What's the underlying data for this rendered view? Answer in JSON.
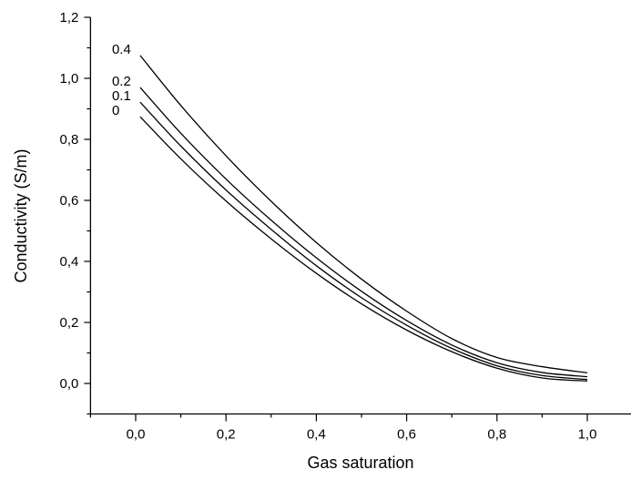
{
  "chart_data": {
    "type": "line",
    "title": "",
    "xlabel": "Gas saturation",
    "ylabel": "Conductivity (S/m)",
    "xlim": [
      -0.1,
      1.1
    ],
    "ylim": [
      -0.1,
      1.2
    ],
    "x_ticks": [
      0.0,
      0.2,
      0.4,
      0.6,
      0.8,
      1.0
    ],
    "x_tick_labels": [
      "0,0",
      "0,2",
      "0,4",
      "0,6",
      "0,8",
      "1,0"
    ],
    "y_ticks": [
      0.0,
      0.2,
      0.4,
      0.6,
      0.8,
      1.0,
      1.2
    ],
    "y_tick_labels": [
      "0,0",
      "0,2",
      "0,4",
      "0,6",
      "0,8",
      "1,0",
      "1,2"
    ],
    "grid": false,
    "legend": "none",
    "x": [
      0.01,
      0.1,
      0.2,
      0.3,
      0.4,
      0.5,
      0.6,
      0.7,
      0.8,
      0.9,
      1.0
    ],
    "series": [
      {
        "name": "0.4",
        "values": [
          1.075,
          0.911,
          0.746,
          0.597,
          0.462,
          0.342,
          0.237,
          0.147,
          0.085,
          0.055,
          0.035
        ]
      },
      {
        "name": "0.2",
        "values": [
          0.97,
          0.82,
          0.67,
          0.535,
          0.412,
          0.302,
          0.206,
          0.126,
          0.068,
          0.036,
          0.022
        ]
      },
      {
        "name": "0.1",
        "values": [
          0.922,
          0.778,
          0.634,
          0.505,
          0.386,
          0.281,
          0.191,
          0.115,
          0.058,
          0.026,
          0.013
        ]
      },
      {
        "name": "0",
        "values": [
          0.874,
          0.736,
          0.598,
          0.474,
          0.361,
          0.261,
          0.175,
          0.104,
          0.05,
          0.018,
          0.008
        ]
      }
    ]
  }
}
